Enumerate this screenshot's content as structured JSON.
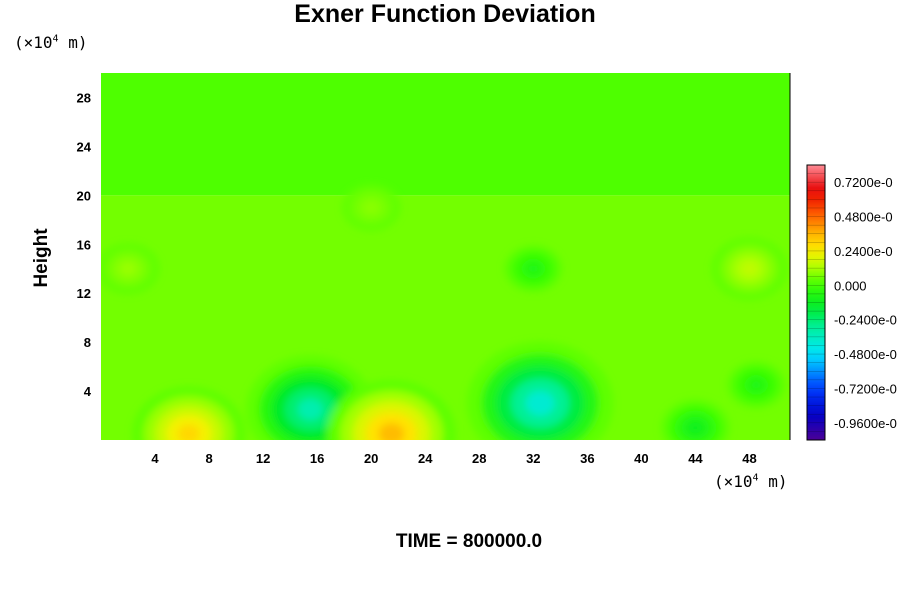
{
  "chart_data": {
    "type": "heatmap",
    "title": "Exner Function Deviation",
    "ylabel": "Height",
    "xunit_prefix": "(×10",
    "xunit_exp": "4",
    "xunit_suffix": " m)",
    "yunit_prefix": "(×10",
    "yunit_exp": "4",
    "yunit_suffix": " m)",
    "xlim": [
      0,
      51
    ],
    "ylim": [
      0,
      30
    ],
    "xticks": [
      4,
      8,
      12,
      16,
      20,
      24,
      28,
      32,
      36,
      40,
      44,
      48
    ],
    "yticks": [
      4,
      8,
      12,
      16,
      20,
      24,
      28
    ],
    "footer": "TIME = 800000.0",
    "colorbar": {
      "labels": [
        "0.7200e-0",
        "0.4800e-0",
        "0.2400e-0",
        "0.000",
        "-0.2400e-0",
        "-0.4800e-0",
        "-0.7200e-0",
        "-0.9600e-0"
      ],
      "label_values": [
        0.72,
        0.48,
        0.24,
        0.0,
        -0.24,
        -0.48,
        -0.72,
        -0.96
      ],
      "range": [
        -1.08,
        0.84
      ]
    },
    "field_values": {
      "background_upper": 0.02,
      "background_lower": 0.06,
      "features": [
        {
          "x": 15.5,
          "y": 2.5,
          "value": -0.42
        },
        {
          "x": 32.5,
          "y": 3.0,
          "value": -0.5
        },
        {
          "x": 32.0,
          "y": 14.0,
          "value": -0.1
        },
        {
          "x": 21.5,
          "y": 0.5,
          "value": 0.42
        },
        {
          "x": 6.5,
          "y": 0.5,
          "value": 0.35
        },
        {
          "x": 44.0,
          "y": 1.0,
          "value": -0.15
        },
        {
          "x": 48.5,
          "y": 4.5,
          "value": -0.1
        },
        {
          "x": 48.0,
          "y": 14.0,
          "value": 0.18
        },
        {
          "x": 2.0,
          "y": 14.0,
          "value": 0.12
        },
        {
          "x": 20.0,
          "y": 19.0,
          "value": 0.1
        }
      ]
    }
  }
}
